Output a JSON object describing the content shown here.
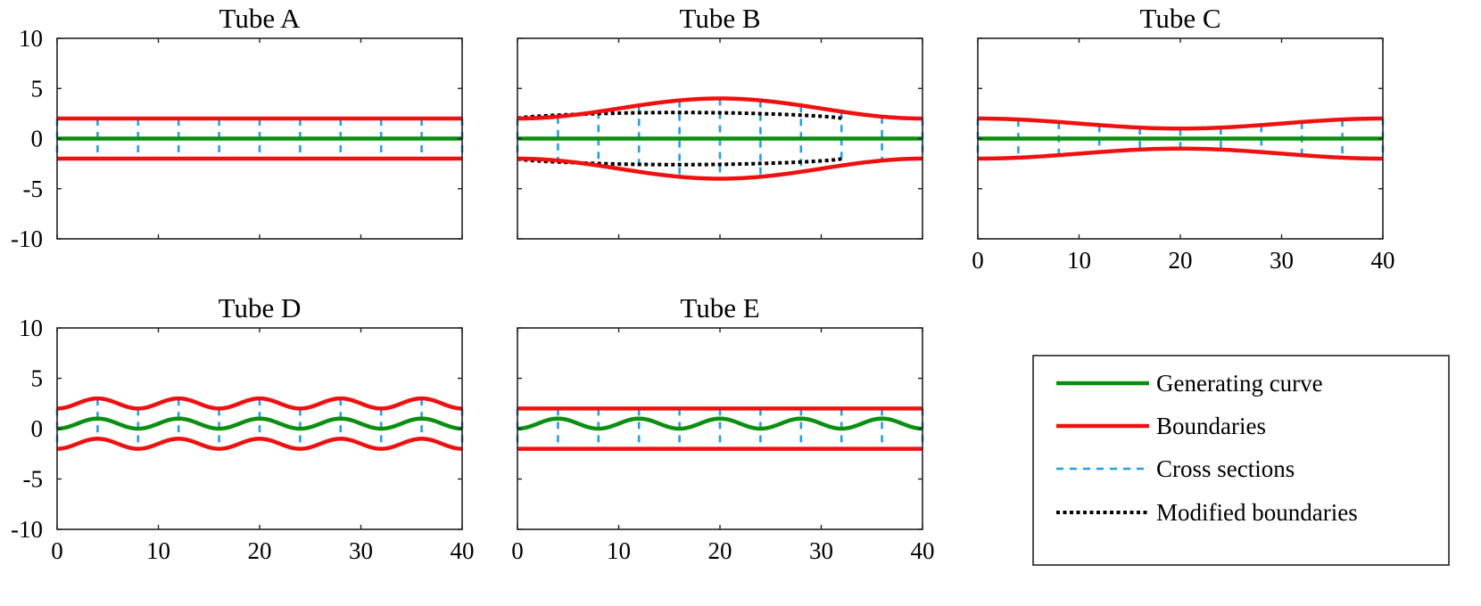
{
  "colors": {
    "generating": "#0a8f10",
    "boundary": "#f01010",
    "cross": "#1ea0f0",
    "modified": "#000000"
  },
  "chart_data": [
    {
      "type": "line",
      "title": "Tube A",
      "xlim": [
        0,
        40
      ],
      "ylim": [
        -10,
        10
      ],
      "xticks": [],
      "yticks": [
        -10,
        -5,
        0,
        5,
        10
      ],
      "series": {
        "generating_curve": {
          "formula": "y = 0"
        },
        "boundaries": {
          "upper": "y = 2",
          "lower": "y = -2"
        },
        "cross_sections_x": [
          0,
          4,
          8,
          12,
          16,
          20,
          24,
          28,
          32,
          36,
          40
        ]
      }
    },
    {
      "type": "line",
      "title": "Tube B",
      "xlim": [
        0,
        40
      ],
      "ylim": [
        -10,
        10
      ],
      "xticks": [],
      "yticks": [],
      "series": {
        "generating_curve": {
          "formula": "y = 0"
        },
        "boundaries": {
          "upper": "y = 3 - cos(2πx/40)",
          "lower": "y = -(3 - cos(2πx/40))",
          "max_halfwidth": 4,
          "min_halfwidth": 2
        },
        "modified_boundaries": {
          "x_range": [
            0,
            32
          ],
          "halfwidth_plateau": 2.6,
          "endpoints_halfwidth": 2
        },
        "cross_sections_x": [
          0,
          4,
          8,
          12,
          16,
          20,
          24,
          28,
          32,
          36,
          40
        ]
      }
    },
    {
      "type": "line",
      "title": "Tube C",
      "xlim": [
        0,
        40
      ],
      "ylim": [
        -10,
        10
      ],
      "xticks": [
        0,
        10,
        20,
        30,
        40
      ],
      "yticks": [],
      "series": {
        "generating_curve": {
          "formula": "y = 0"
        },
        "boundaries": {
          "upper": "y = 1.5 + 0.5cos(2πx/40)",
          "lower": "y = -(1.5 + 0.5cos(2πx/40))",
          "max_halfwidth": 2,
          "min_halfwidth": 1
        },
        "cross_sections_x": [
          0,
          4,
          8,
          12,
          16,
          20,
          24,
          28,
          32,
          36,
          40
        ]
      }
    },
    {
      "type": "line",
      "title": "Tube D",
      "xlim": [
        0,
        40
      ],
      "ylim": [
        -10,
        10
      ],
      "xticks": [
        0,
        10,
        20,
        30,
        40
      ],
      "yticks": [
        -10,
        -5,
        0,
        5,
        10
      ],
      "series": {
        "generating_curve": {
          "formula": "y = 0.5 - 0.5cos(2πx/8)",
          "amplitude": 1,
          "period": 8
        },
        "boundaries": {
          "upper": "y = c(x) + 2",
          "lower": "y = c(x) - 2"
        },
        "cross_sections_x": [
          0,
          4,
          8,
          12,
          16,
          20,
          24,
          28,
          32,
          36,
          40
        ]
      }
    },
    {
      "type": "line",
      "title": "Tube E",
      "xlim": [
        0,
        40
      ],
      "ylim": [
        -10,
        10
      ],
      "xticks": [
        0,
        10,
        20,
        30,
        40
      ],
      "yticks": [],
      "series": {
        "generating_curve": {
          "formula": "y = 0.5 - 0.5cos(2πx/8)",
          "amplitude": 1,
          "period": 8
        },
        "boundaries": {
          "upper": "y = 2",
          "lower": "y = -2"
        },
        "cross_sections_x": [
          0,
          4,
          8,
          12,
          16,
          20,
          24,
          28,
          32,
          36,
          40
        ]
      }
    }
  ],
  "legend": {
    "placement": "bottom-right",
    "entries": [
      {
        "label": "Generating curve",
        "style": "generating"
      },
      {
        "label": "Boundaries",
        "style": "boundary"
      },
      {
        "label": "Cross sections",
        "style": "cross"
      },
      {
        "label": "Modified boundaries",
        "style": "modified"
      }
    ]
  }
}
